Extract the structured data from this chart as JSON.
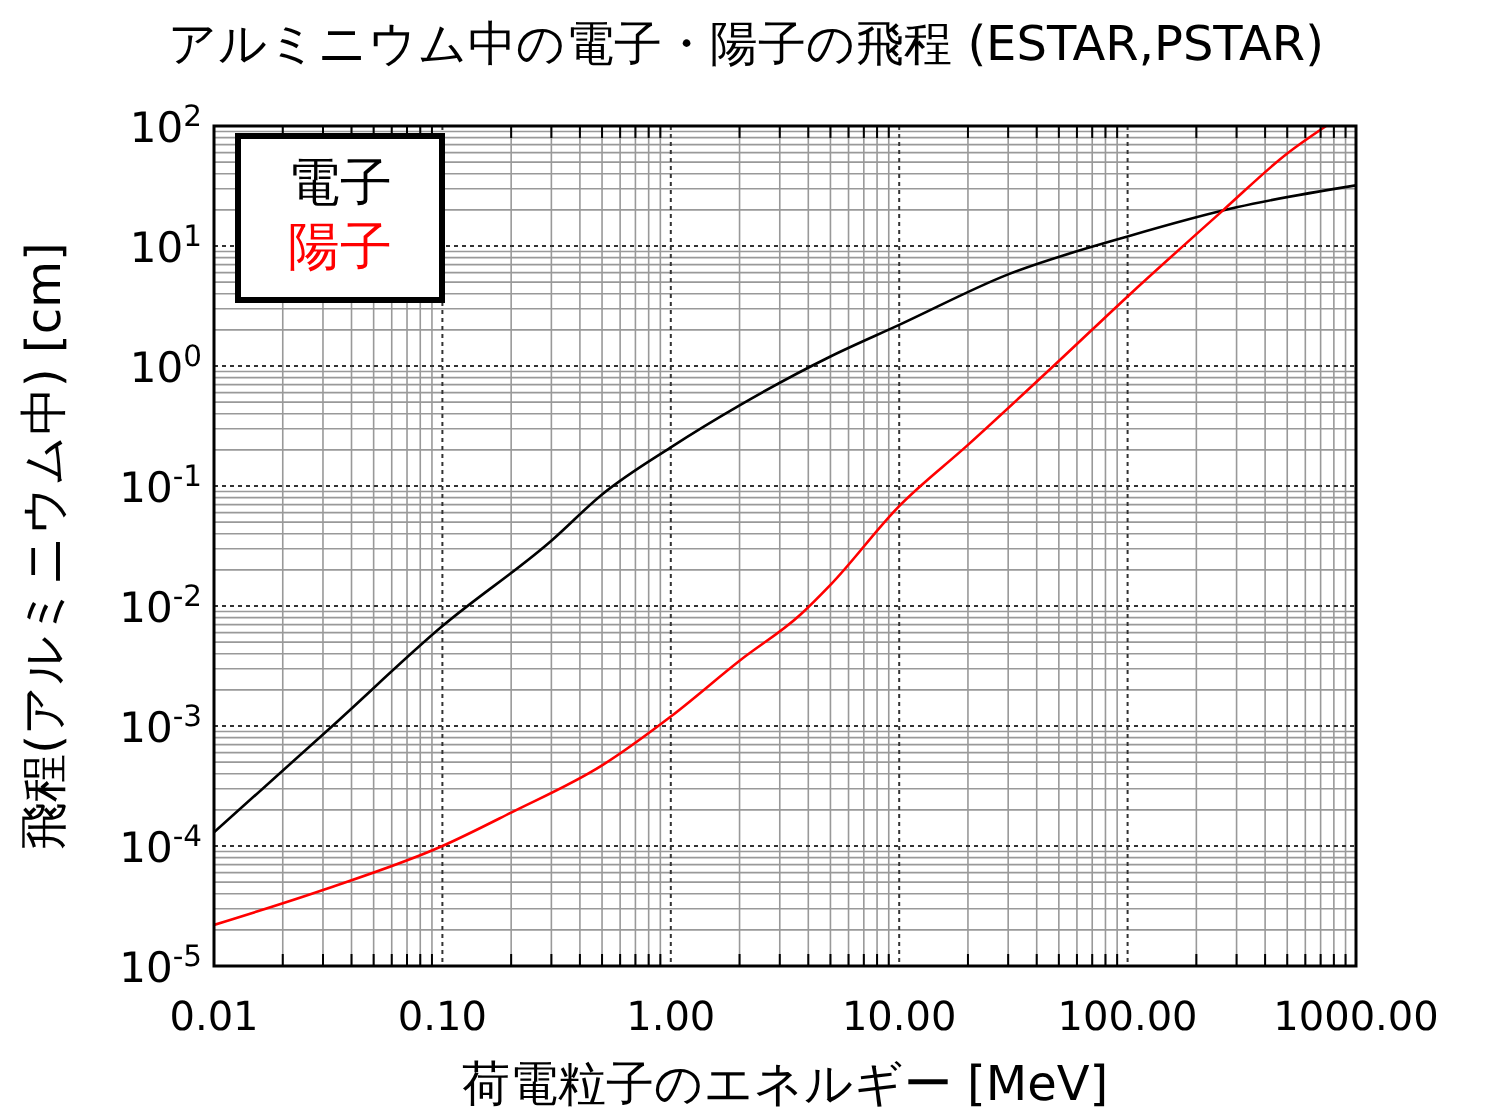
{
  "chart_data": {
    "type": "line",
    "title": "アルミニウム中の電子・陽子の飛程 (ESTAR,PSTAR)",
    "xlabel": "荷電粒子のエネルギー [MeV]",
    "ylabel": "飛程(アルミニウム中) [cm]",
    "log": "xy",
    "grid": true,
    "legend": "top left",
    "marker": "none",
    "line_style": "solid",
    "xlim": [
      0.01,
      1000
    ],
    "ylim": [
      1e-05,
      100
    ],
    "xticks": [
      {
        "value": 0.01,
        "label": "0.01"
      },
      {
        "value": 0.1,
        "label": "0.10"
      },
      {
        "value": 1,
        "label": "1.00"
      },
      {
        "value": 10,
        "label": "10.00"
      },
      {
        "value": 100,
        "label": "100.00"
      },
      {
        "value": 1000,
        "label": "1000.00"
      }
    ],
    "yticks": [
      {
        "value": 1e-05,
        "label": "10$^{-5}$"
      },
      {
        "value": 0.0001,
        "label": "10$^{-4}$"
      },
      {
        "value": 0.001,
        "label": "10$^{-3}$"
      },
      {
        "value": 0.01,
        "label": "10$^{-2}$"
      },
      {
        "value": 0.1,
        "label": "10$^{-1}$"
      },
      {
        "value": 1,
        "label": "10$^{0}$"
      },
      {
        "value": 10,
        "label": "10$^{1}$"
      },
      {
        "value": 100,
        "label": "10$^{2}$"
      }
    ],
    "series": [
      {
        "name": "電子",
        "color": "#000000",
        "x": [
          0.01,
          0.033,
          0.1,
          0.3,
          0.5,
          1,
          2,
          5,
          10,
          30,
          100,
          300,
          1000
        ],
        "values": [
          0.00013,
          0.001,
          0.0068,
          0.035,
          0.085,
          0.21,
          0.47,
          1.2,
          2.2,
          5.8,
          12,
          21,
          32
        ]
      },
      {
        "name": "陽子",
        "color": "#ff0000",
        "x": [
          0.01,
          0.03,
          0.1,
          0.2,
          0.5,
          1,
          2,
          3.7,
          5,
          10,
          20,
          50,
          100,
          263,
          500,
          740
        ],
        "values": [
          2.2e-05,
          4.3e-05,
          0.0001,
          0.00019,
          0.00047,
          0.0012,
          0.0035,
          0.0085,
          0.015,
          0.068,
          0.22,
          1.1,
          3.8,
          20,
          59,
          100
        ]
      }
    ]
  }
}
